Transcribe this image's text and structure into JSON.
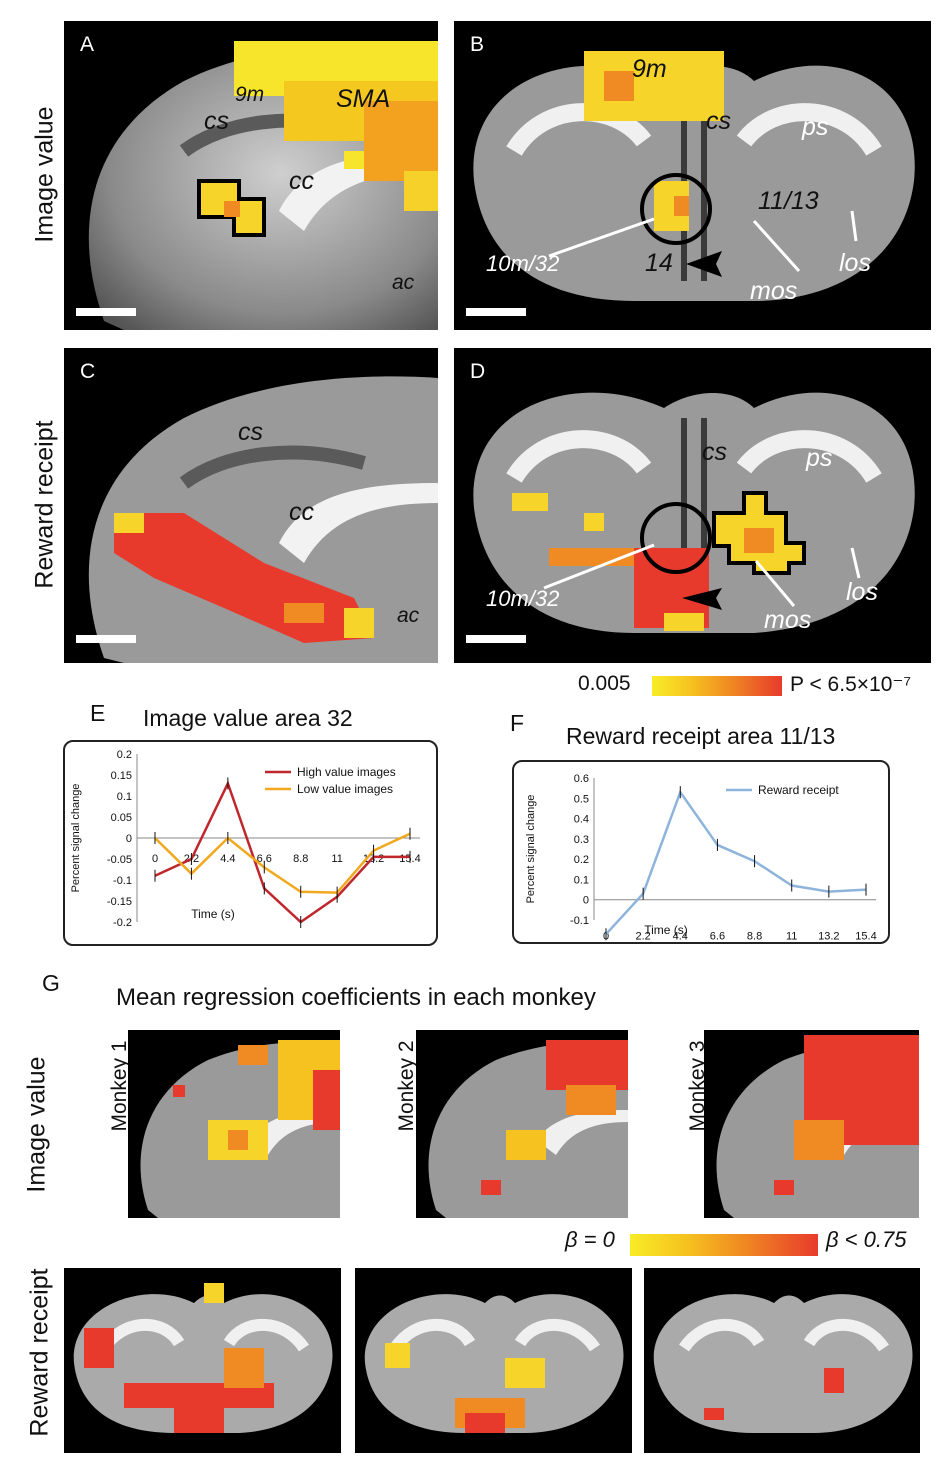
{
  "rows": {
    "image_value": "Image value",
    "reward_receipt": "Reward receipt"
  },
  "panels": {
    "A": {
      "letter": "A",
      "labels": [
        "9m",
        "SMA",
        "cs",
        "cc",
        "ac"
      ]
    },
    "B": {
      "letter": "B",
      "labels": [
        "9m",
        "cs",
        "ps",
        "11/13",
        "los",
        "10m/32",
        "14",
        "mos"
      ]
    },
    "C": {
      "letter": "C",
      "labels": [
        "cs",
        "cc",
        "ac"
      ]
    },
    "D": {
      "letter": "D",
      "labels": [
        "cs",
        "ps",
        "10m/32",
        "mos",
        "los"
      ]
    }
  },
  "colorbar_p": {
    "low": "0.005",
    "high": "P < 6.5×10⁻⁷",
    "colors": [
      "#f8ec27",
      "#f08a22",
      "#e83a2c"
    ]
  },
  "panel_E": {
    "letter": "E",
    "title": "Image value area 32"
  },
  "panel_F": {
    "letter": "F",
    "title": "Reward receipt area   11/13"
  },
  "panel_G": {
    "letter": "G",
    "title": "Mean regression coefficients in each monkey",
    "monkeys": [
      "Monkey 1",
      "Monkey 2",
      "Monkey 3"
    ],
    "beta_low": "β = 0",
    "beta_high": "β < 0.75"
  },
  "chart_data": [
    {
      "type": "line",
      "title": "Image value area 32",
      "xlabel": "Time (s)",
      "ylabel": "Percent signal change",
      "x": [
        "0",
        "2.2",
        "4.4",
        "6.6",
        "8.8",
        "11",
        "13.2",
        "15.4"
      ],
      "ylim": [
        -0.2,
        0.2
      ],
      "yticks": [
        "0.2",
        "0.15",
        "0.1",
        "0.05",
        "0",
        "-0.05",
        "-0.1",
        "-0.15",
        "-0.2"
      ],
      "series": [
        {
          "name": "High value images",
          "color": "#c0272d",
          "values": [
            -0.09,
            -0.05,
            0.13,
            -0.12,
            -0.2,
            -0.14,
            -0.045,
            -0.045
          ]
        },
        {
          "name": "Low value images",
          "color": "#f2a81d",
          "values": [
            0.0,
            -0.085,
            0.0,
            -0.07,
            -0.128,
            -0.13,
            -0.03,
            0.01
          ]
        }
      ],
      "legend": "top-right"
    },
    {
      "type": "line",
      "title": "Reward receipt area   11/13",
      "xlabel": "Time (s)",
      "ylabel": "Percent signal change",
      "x": [
        "0",
        "2.2",
        "4.4",
        "6.6",
        "8.8",
        "11",
        "13.2",
        "15.4"
      ],
      "ylim": [
        -0.1,
        0.6
      ],
      "yticks": [
        "0.6",
        "0.5",
        "0.4",
        "0.3",
        "0.2",
        "0.1",
        "0",
        "-0.1"
      ],
      "series": [
        {
          "name": "Reward receipt",
          "color": "#8eb4dc",
          "values": [
            -0.17,
            0.03,
            0.53,
            0.27,
            0.19,
            0.07,
            0.04,
            0.05
          ]
        }
      ],
      "legend": "top-right"
    }
  ]
}
